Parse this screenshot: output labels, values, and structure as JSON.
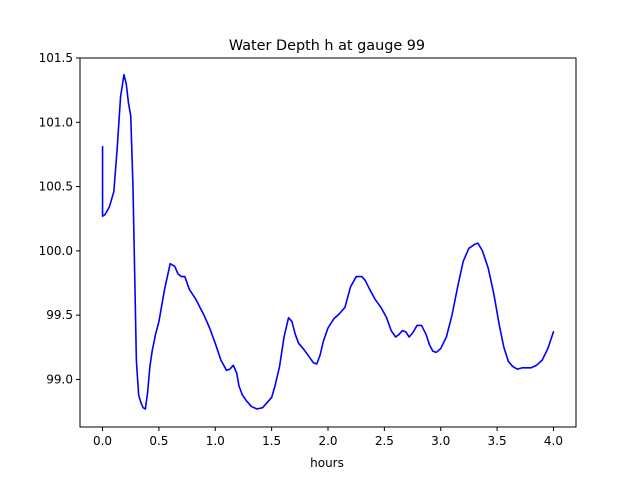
{
  "chart_data": {
    "type": "line",
    "title": "Water Depth h at gauge 99",
    "xlabel": "hours",
    "ylabel": "",
    "xlim": [
      -0.2,
      4.2
    ],
    "ylim": [
      98.63,
      101.5
    ],
    "xticks": [
      0.0,
      0.5,
      1.0,
      1.5,
      2.0,
      2.5,
      3.0,
      3.5,
      4.0
    ],
    "xtick_labels": [
      "0.0",
      "0.5",
      "1.0",
      "1.5",
      "2.0",
      "2.5",
      "3.0",
      "3.5",
      "4.0"
    ],
    "yticks": [
      99.0,
      99.5,
      100.0,
      100.5,
      101.0,
      101.5
    ],
    "ytick_labels": [
      "99.0",
      "99.5",
      "100.0",
      "100.5",
      "101.0",
      "101.5"
    ],
    "grid": false,
    "series": [
      {
        "color": "#0000ff",
        "x": [
          0.0,
          0.0,
          0.02,
          0.06,
          0.1,
          0.13,
          0.16,
          0.19,
          0.21,
          0.23,
          0.25,
          0.27,
          0.29,
          0.3,
          0.32,
          0.34,
          0.36,
          0.38,
          0.4,
          0.42,
          0.44,
          0.47,
          0.5,
          0.55,
          0.6,
          0.64,
          0.67,
          0.7,
          0.73,
          0.77,
          0.8,
          0.83,
          0.87,
          0.9,
          0.95,
          1.0,
          1.05,
          1.1,
          1.13,
          1.16,
          1.19,
          1.21,
          1.24,
          1.28,
          1.32,
          1.37,
          1.42,
          1.46,
          1.5,
          1.53,
          1.57,
          1.61,
          1.65,
          1.68,
          1.71,
          1.74,
          1.78,
          1.83,
          1.87,
          1.9,
          1.93,
          1.96,
          2.0,
          2.05,
          2.1,
          2.15,
          2.2,
          2.25,
          2.3,
          2.33,
          2.37,
          2.42,
          2.47,
          2.52,
          2.56,
          2.6,
          2.63,
          2.66,
          2.69,
          2.72,
          2.75,
          2.79,
          2.83,
          2.87,
          2.9,
          2.93,
          2.96,
          3.0,
          3.05,
          3.1,
          3.15,
          3.2,
          3.25,
          3.3,
          3.33,
          3.37,
          3.42,
          3.47,
          3.52,
          3.56,
          3.6,
          3.64,
          3.68,
          3.72,
          3.8,
          3.85,
          3.9,
          3.95,
          4.0
        ],
        "y": [
          100.81,
          100.27,
          100.28,
          100.34,
          100.46,
          100.8,
          101.2,
          101.37,
          101.3,
          101.15,
          101.05,
          100.5,
          99.6,
          99.15,
          98.88,
          98.82,
          98.78,
          98.77,
          98.9,
          99.1,
          99.22,
          99.35,
          99.45,
          99.7,
          99.9,
          99.88,
          99.82,
          99.8,
          99.8,
          99.7,
          99.66,
          99.62,
          99.55,
          99.5,
          99.4,
          99.28,
          99.15,
          99.07,
          99.08,
          99.11,
          99.05,
          98.95,
          98.88,
          98.83,
          98.79,
          98.77,
          98.78,
          98.82,
          98.86,
          98.95,
          99.1,
          99.33,
          99.48,
          99.45,
          99.35,
          99.28,
          99.24,
          99.18,
          99.13,
          99.12,
          99.19,
          99.3,
          99.4,
          99.47,
          99.51,
          99.56,
          99.72,
          99.8,
          99.8,
          99.77,
          99.7,
          99.62,
          99.56,
          99.48,
          99.38,
          99.33,
          99.35,
          99.38,
          99.37,
          99.33,
          99.36,
          99.42,
          99.42,
          99.35,
          99.27,
          99.22,
          99.21,
          99.24,
          99.33,
          99.5,
          99.72,
          99.92,
          100.02,
          100.05,
          100.06,
          100.0,
          99.87,
          99.67,
          99.42,
          99.25,
          99.14,
          99.1,
          99.08,
          99.09,
          99.09,
          99.11,
          99.15,
          99.24,
          99.37
        ]
      }
    ]
  }
}
